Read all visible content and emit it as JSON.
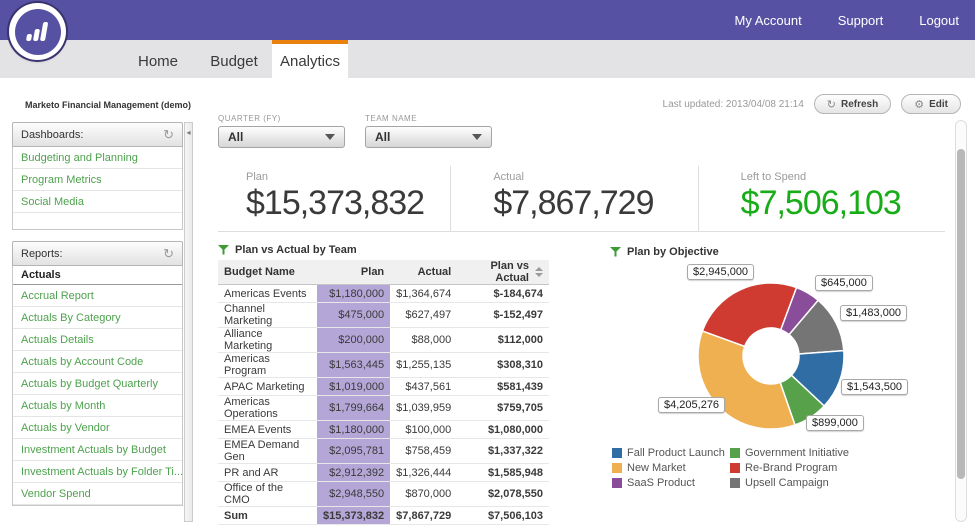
{
  "header": {
    "nav": [
      "My Account",
      "Support",
      "Logout"
    ]
  },
  "tabs": [
    {
      "label": "Home",
      "active": false
    },
    {
      "label": "Budget",
      "active": false
    },
    {
      "label": "Analytics",
      "active": true
    }
  ],
  "page": {
    "title": "Marketo Financial Management (demo)",
    "last_updated": "Last updated: 2013/04/08 21:14",
    "refresh_label": "Refresh",
    "edit_label": "Edit"
  },
  "icons": {
    "refresh": "↻",
    "gear": "⚙",
    "collapse_arrow": "◂",
    "dropdown_arrow": "triangle-down",
    "sort": "up-down-triangles",
    "funnel": "green-filter-funnel",
    "logo": "marketo-bars"
  },
  "sidebar": {
    "dashboards_title": "Dashboards:",
    "dashboards": [
      "Budgeting and Planning",
      "Program Metrics",
      "Social Media"
    ],
    "reports_title": "Reports:",
    "reports_group": "Actuals",
    "reports": [
      "Accrual Report",
      "Actuals By Category",
      "Actuals Details",
      "Actuals by Account Code",
      "Actuals by Budget Quarterly",
      "Actuals by Month",
      "Actuals by Vendor",
      "Investment Actuals by Budget",
      "Investment Actuals by Folder Ti...",
      "Vendor Spend"
    ]
  },
  "filters": [
    {
      "label": "QUARTER (FY)",
      "value": "All"
    },
    {
      "label": "TEAM NAME",
      "value": "All"
    }
  ],
  "kpis": [
    {
      "label": "Plan",
      "value": "$15,373,832",
      "color": "#3a3a3a"
    },
    {
      "label": "Actual",
      "value": "$7,867,729",
      "color": "#3a3a3a"
    },
    {
      "label": "Left to Spend",
      "value": "$7,506,103",
      "color": "#18ad18"
    }
  ],
  "table": {
    "title": "Plan vs Actual by Team",
    "headers": [
      "Budget Name",
      "Plan",
      "Actual",
      "Plan vs Actual"
    ],
    "rows": [
      [
        "Americas Events",
        "$1,180,000",
        "$1,364,674",
        "$-184,674"
      ],
      [
        "Channel Marketing",
        "$475,000",
        "$627,497",
        "$-152,497"
      ],
      [
        "Alliance Marketing",
        "$200,000",
        "$88,000",
        "$112,000"
      ],
      [
        "Americas Program",
        "$1,563,445",
        "$1,255,135",
        "$308,310"
      ],
      [
        "APAC Marketing",
        "$1,019,000",
        "$437,561",
        "$581,439"
      ],
      [
        "Americas Operations",
        "$1,799,664",
        "$1,039,959",
        "$759,705"
      ],
      [
        "EMEA Events",
        "$1,180,000",
        "$100,000",
        "$1,080,000"
      ],
      [
        "EMEA Demand Gen",
        "$2,095,781",
        "$758,459",
        "$1,337,322"
      ],
      [
        "PR and AR",
        "$2,912,392",
        "$1,326,444",
        "$1,585,948"
      ],
      [
        "Office of the CMO",
        "$2,948,550",
        "$870,000",
        "$2,078,550"
      ]
    ],
    "sum": [
      "Sum",
      "$15,373,832",
      "$7,867,729",
      "$7,506,103"
    ]
  },
  "chart_data": {
    "type": "pie",
    "donut": true,
    "title": "Plan by Objective",
    "start_angle_deg": 290,
    "slices": [
      {
        "name": "Re-Brand Program",
        "value": 2945000,
        "label": "$2,945,000",
        "color": "#cf3b30"
      },
      {
        "name": "SaaS Product",
        "value": 645000,
        "label": "$645,000",
        "color": "#8a4d99"
      },
      {
        "name": "Upsell Campaign",
        "value": 1483000,
        "label": "$1,483,000",
        "color": "#757575"
      },
      {
        "name": "Fall Product Launch",
        "value": 1543500,
        "label": "$1,543,500",
        "color": "#2f6da4"
      },
      {
        "name": "Government Initiative",
        "value": 899000,
        "label": "$899,000",
        "color": "#58a14b"
      },
      {
        "name": "New Market",
        "value": 4205276,
        "label": "$4,205,276",
        "color": "#efb052"
      }
    ],
    "legend": [
      {
        "name": "Fall Product Launch",
        "color": "#2f6da4"
      },
      {
        "name": "New Market",
        "color": "#efb052"
      },
      {
        "name": "SaaS Product",
        "color": "#8a4d99"
      },
      {
        "name": "Government Initiative",
        "color": "#58a14b"
      },
      {
        "name": "Re-Brand Program",
        "color": "#cf3b30"
      },
      {
        "name": "Upsell Campaign",
        "color": "#757575"
      }
    ],
    "legend_position": "bottom"
  },
  "colors": {
    "brand_purple": "#5751a3",
    "tab_active_accent": "#e8820d",
    "link_green": "#4ea24e",
    "kpi_green": "#18ad18",
    "diff_red": "#e0291f",
    "diff_green": "#1ea51e",
    "plan_cell_bg": "#b4a7d7"
  }
}
